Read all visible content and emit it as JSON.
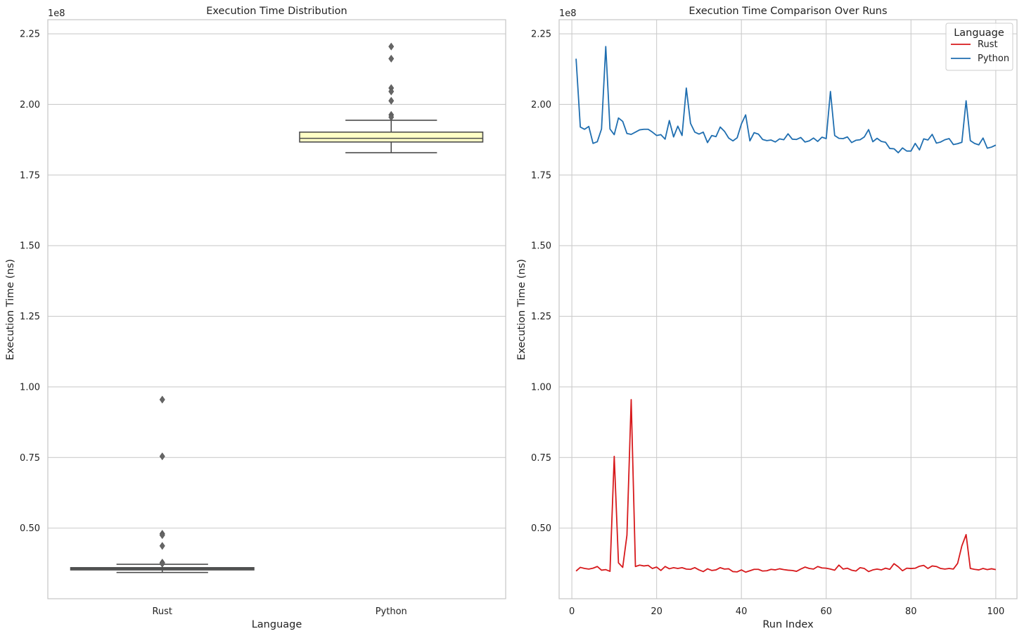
{
  "chart_data": [
    {
      "type": "box",
      "title": "Execution Time Distribution",
      "xlabel": "Language",
      "ylabel": "Execution Time (ns)",
      "y_offset_label": "1e8",
      "ylim": [
        0.25,
        2.3
      ],
      "y_ticks": [
        0.5,
        0.75,
        1.0,
        1.25,
        1.5,
        1.75,
        2.0,
        2.25
      ],
      "y_tick_labels": [
        "0.50",
        "0.75",
        "1.00",
        "1.25",
        "1.50",
        "1.75",
        "2.00",
        "2.25"
      ],
      "grid": true,
      "categories": [
        "Rust",
        "Python"
      ],
      "boxes": [
        {
          "name": "Rust",
          "whisker_low": 0.343,
          "q1": 0.352,
          "median": 0.356,
          "q3": 0.36,
          "whisker_high": 0.372,
          "outliers": [
            0.955,
            0.754,
            0.48,
            0.475,
            0.437,
            0.378,
            0.374
          ],
          "color": "#8c9a9a"
        },
        {
          "name": "Python",
          "whisker_low": 1.829,
          "q1": 1.867,
          "median": 1.88,
          "q3": 1.902,
          "whisker_high": 1.944,
          "outliers": [
            2.205,
            2.162,
            2.058,
            2.046,
            2.013,
            1.963,
            1.955
          ],
          "color": "#ffffc6"
        }
      ]
    },
    {
      "type": "line",
      "title": "Execution Time Comparison Over Runs",
      "xlabel": "Run Index",
      "ylabel": "Execution Time (ns)",
      "y_offset_label": "1e8",
      "xlim": [
        -3,
        105
      ],
      "ylim": [
        0.25,
        2.3
      ],
      "x_ticks": [
        0,
        20,
        40,
        60,
        80,
        100
      ],
      "x_tick_labels": [
        "0",
        "20",
        "40",
        "60",
        "80",
        "100"
      ],
      "y_ticks": [
        0.5,
        0.75,
        1.0,
        1.25,
        1.5,
        1.75,
        2.0,
        2.25
      ],
      "y_tick_labels": [
        "0.50",
        "0.75",
        "1.00",
        "1.25",
        "1.50",
        "1.75",
        "2.00",
        "2.25"
      ],
      "grid": true,
      "legend": {
        "title": "Language",
        "placement": "top-right"
      },
      "x": [
        1,
        2,
        3,
        4,
        5,
        6,
        7,
        8,
        9,
        10,
        11,
        12,
        13,
        14,
        15,
        16,
        17,
        18,
        19,
        20,
        21,
        22,
        23,
        24,
        25,
        26,
        27,
        28,
        29,
        30,
        31,
        32,
        33,
        34,
        35,
        36,
        37,
        38,
        39,
        40,
        41,
        42,
        43,
        44,
        45,
        46,
        47,
        48,
        49,
        50,
        51,
        52,
        53,
        54,
        55,
        56,
        57,
        58,
        59,
        60,
        61,
        62,
        63,
        64,
        65,
        66,
        67,
        68,
        69,
        70,
        71,
        72,
        73,
        74,
        75,
        76,
        77,
        78,
        79,
        80,
        81,
        82,
        83,
        84,
        85,
        86,
        87,
        88,
        89,
        90,
        91,
        92,
        93,
        94,
        95,
        96,
        97,
        98,
        99,
        100
      ],
      "series": [
        {
          "name": "Rust",
          "color": "#d7191c",
          "values": [
            0.348,
            0.361,
            0.357,
            0.355,
            0.358,
            0.364,
            0.351,
            0.353,
            0.347,
            0.754,
            0.377,
            0.361,
            0.475,
            0.955,
            0.364,
            0.369,
            0.366,
            0.368,
            0.357,
            0.362,
            0.35,
            0.364,
            0.356,
            0.36,
            0.357,
            0.36,
            0.355,
            0.354,
            0.36,
            0.352,
            0.346,
            0.356,
            0.35,
            0.352,
            0.36,
            0.355,
            0.356,
            0.346,
            0.345,
            0.352,
            0.344,
            0.349,
            0.354,
            0.354,
            0.348,
            0.349,
            0.354,
            0.352,
            0.356,
            0.353,
            0.351,
            0.35,
            0.347,
            0.355,
            0.362,
            0.357,
            0.355,
            0.364,
            0.359,
            0.358,
            0.355,
            0.351,
            0.369,
            0.355,
            0.358,
            0.351,
            0.348,
            0.36,
            0.357,
            0.346,
            0.352,
            0.355,
            0.352,
            0.358,
            0.354,
            0.374,
            0.363,
            0.349,
            0.358,
            0.357,
            0.358,
            0.365,
            0.368,
            0.357,
            0.366,
            0.364,
            0.357,
            0.355,
            0.357,
            0.355,
            0.375,
            0.437,
            0.477,
            0.357,
            0.354,
            0.352,
            0.357,
            0.353,
            0.356,
            0.353
          ]
        },
        {
          "name": "Python",
          "color": "#1f6eb0",
          "values": [
            2.162,
            1.92,
            1.912,
            1.922,
            1.862,
            1.868,
            1.913,
            2.205,
            1.913,
            1.893,
            1.952,
            1.94,
            1.897,
            1.894,
            1.902,
            1.91,
            1.912,
            1.912,
            1.902,
            1.89,
            1.893,
            1.877,
            1.943,
            1.885,
            1.923,
            1.89,
            2.058,
            1.933,
            1.902,
            1.895,
            1.902,
            1.865,
            1.89,
            1.886,
            1.92,
            1.905,
            1.881,
            1.871,
            1.882,
            1.931,
            1.963,
            1.871,
            1.9,
            1.895,
            1.876,
            1.872,
            1.874,
            1.867,
            1.878,
            1.875,
            1.896,
            1.877,
            1.876,
            1.883,
            1.867,
            1.871,
            1.881,
            1.869,
            1.884,
            1.879,
            2.046,
            1.89,
            1.88,
            1.879,
            1.885,
            1.865,
            1.873,
            1.875,
            1.885,
            1.911,
            1.868,
            1.88,
            1.869,
            1.866,
            1.844,
            1.843,
            1.829,
            1.846,
            1.835,
            1.835,
            1.862,
            1.839,
            1.878,
            1.874,
            1.894,
            1.863,
            1.867,
            1.875,
            1.879,
            1.858,
            1.861,
            1.866,
            2.013,
            1.872,
            1.862,
            1.857,
            1.881,
            1.845,
            1.849,
            1.856
          ]
        }
      ]
    }
  ]
}
